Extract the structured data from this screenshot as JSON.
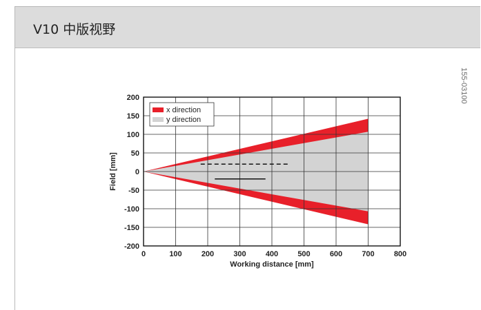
{
  "header": {
    "title": "V10 中版视野"
  },
  "figure_code": "155-03100",
  "colors": {
    "x_direction": "#e8202a",
    "y_direction": "#d3d3d3",
    "header_bg": "#dcdcdc"
  },
  "chart_data": {
    "type": "area",
    "xlabel": "Working distance [mm]",
    "ylabel": "Field [mm]",
    "xlim": [
      0,
      800
    ],
    "ylim": [
      -200,
      200
    ],
    "x_ticks": [
      0,
      100,
      200,
      300,
      400,
      500,
      600,
      700,
      800
    ],
    "y_ticks": [
      200,
      150,
      100,
      50,
      0,
      -50,
      -100,
      -150,
      -200
    ],
    "grid": true,
    "legend": "top-left",
    "series": [
      {
        "name": "x direction",
        "x": [
          0,
          700
        ],
        "upper": [
          0,
          142
        ],
        "lower": [
          0,
          -142
        ]
      },
      {
        "name": "y direction",
        "x": [
          0,
          700
        ],
        "upper": [
          0,
          107
        ],
        "lower": [
          0,
          -107
        ]
      }
    ],
    "annotations": [
      {
        "style": "dashed",
        "x": [
          178,
          455
        ],
        "y": 20
      },
      {
        "style": "solid",
        "x": [
          222,
          380
        ],
        "y": -20
      }
    ]
  }
}
